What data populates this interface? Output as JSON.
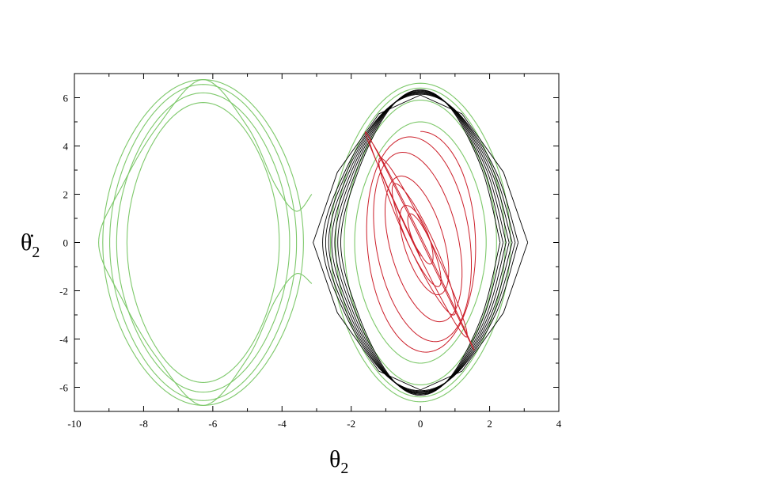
{
  "chart_data": {
    "type": "line",
    "title": "",
    "xlabel": "θ2",
    "ylabel": "θ̇2",
    "xlim": [
      -10,
      4
    ],
    "ylim": [
      -7,
      7
    ],
    "xticks": [
      -10,
      -8,
      -6,
      -4,
      -2,
      0,
      2,
      4
    ],
    "yticks": [
      -6,
      -4,
      -2,
      0,
      2,
      4,
      6
    ],
    "grid": false,
    "legend": "none",
    "colors": {
      "green": "#7dc86a",
      "black": "#000000",
      "red": "#cc1f2a"
    },
    "series": [
      {
        "color": "green",
        "style": "closed-orbits",
        "center": [
          -6.28,
          0
        ],
        "half_widths": [
          2.9,
          2.7,
          2.5,
          2.2
        ],
        "half_heights": [
          6.75,
          6.55,
          6.2,
          5.8
        ]
      },
      {
        "color": "green",
        "style": "separatrix",
        "points": [
          [
            -3.14,
            2.0
          ],
          [
            -3.6,
            1.3
          ],
          [
            -4.2,
            2.4
          ],
          [
            -5.0,
            4.8
          ],
          [
            -6.28,
            6.75
          ],
          [
            -7.6,
            4.8
          ],
          [
            -8.6,
            2.4
          ],
          [
            -9.3,
            0
          ],
          [
            -8.6,
            -2.4
          ],
          [
            -7.6,
            -4.8
          ],
          [
            -6.28,
            -6.75
          ],
          [
            -5.0,
            -4.8
          ],
          [
            -4.2,
            -2.4
          ],
          [
            -3.6,
            -1.3
          ],
          [
            -3.14,
            -1.7
          ]
        ]
      },
      {
        "color": "green",
        "style": "closed-orbits",
        "center": [
          0,
          0
        ],
        "half_widths": [
          2.6,
          2.45,
          2.2,
          1.9
        ],
        "half_heights": [
          6.6,
          6.4,
          5.9,
          5.0
        ]
      },
      {
        "color": "black",
        "style": "chaotic-band",
        "points": [
          [
            3.1,
            0
          ],
          [
            2.4,
            3.0
          ],
          [
            1.2,
            5.5
          ],
          [
            0,
            6.3
          ],
          [
            -1.2,
            5.5
          ],
          [
            -2.4,
            3.0
          ],
          [
            -3.1,
            0
          ],
          [
            -2.4,
            -3.0
          ],
          [
            -1.2,
            -5.5
          ],
          [
            0,
            -6.3
          ],
          [
            1.2,
            -5.5
          ],
          [
            2.4,
            -3.0
          ],
          [
            3.1,
            0
          ]
        ]
      },
      {
        "color": "red",
        "style": "quasi-periodic",
        "center": [
          0,
          0
        ],
        "x_amplitude": 1.6,
        "y_amplitude": 4.6
      }
    ]
  }
}
